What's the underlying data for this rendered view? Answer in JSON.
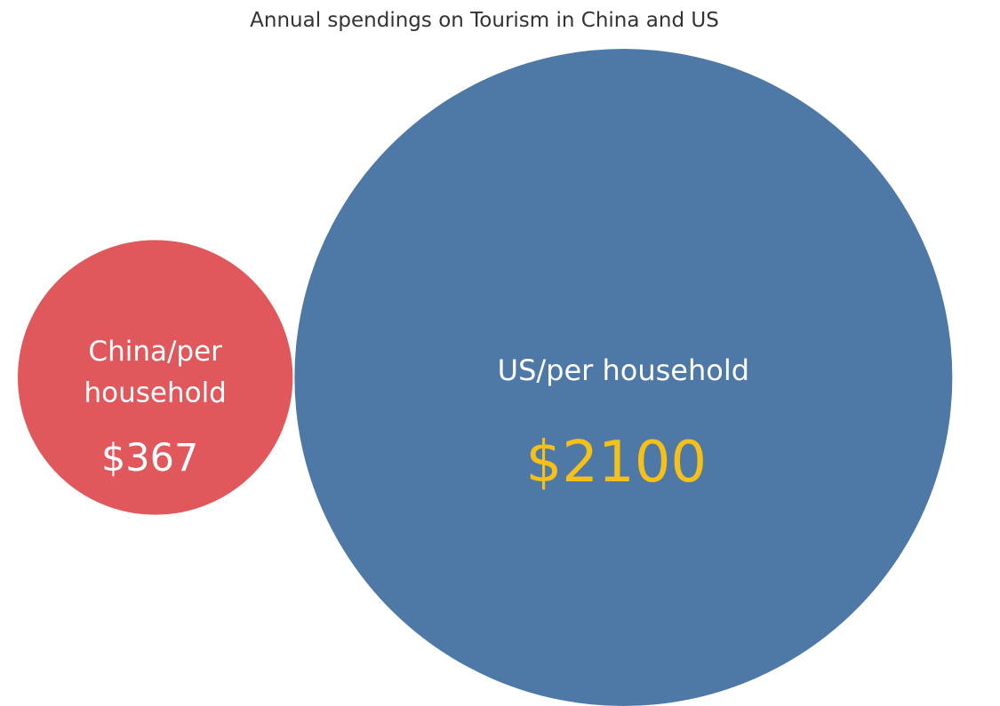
{
  "chart_data": {
    "type": "bubble",
    "title": "Annual spendings on Tourism in China and US",
    "series": [
      {
        "label_lines": [
          "China/per",
          "household"
        ],
        "value": 367,
        "value_label": "$367",
        "color": "#e0585b",
        "label_color": "#ffffff",
        "value_color": "#ffffff"
      },
      {
        "label_lines": [
          "US/per household"
        ],
        "value": 2100,
        "value_label": "$2100",
        "color": "#4e79a7",
        "label_color": "#ffffff",
        "value_color": "#f5c018"
      }
    ]
  }
}
